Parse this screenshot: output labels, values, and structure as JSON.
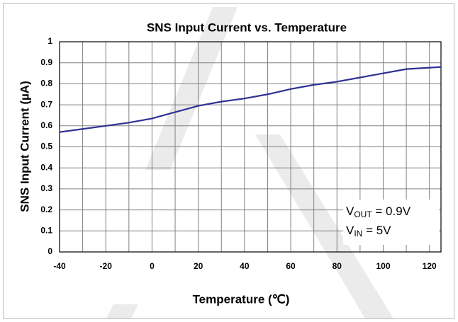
{
  "chart_data": {
    "type": "line",
    "title": "SNS Input Current vs. Temperature",
    "x_label": "Temperature (℃)",
    "y_label": "SNS Input Current (µA)",
    "x": [
      -40,
      -30,
      -20,
      -10,
      0,
      10,
      20,
      30,
      40,
      50,
      60,
      70,
      80,
      90,
      100,
      110,
      125
    ],
    "series": [
      {
        "color": "#2e3192",
        "values": [
          0.57,
          0.585,
          0.6,
          0.615,
          0.635,
          0.665,
          0.695,
          0.715,
          0.73,
          0.75,
          0.775,
          0.795,
          0.81,
          0.83,
          0.85,
          0.87,
          0.88
        ]
      }
    ],
    "xlim": [
      -40,
      125
    ],
    "xticks": [
      -40,
      -20,
      0,
      20,
      40,
      60,
      80,
      100,
      120
    ],
    "xminor_ticks": [
      -30,
      -10,
      10,
      30,
      50,
      70,
      90,
      110
    ],
    "ylim": [
      0,
      1
    ],
    "yticks": [
      0,
      0.1,
      0.2,
      0.3,
      0.4,
      0.5,
      0.6,
      0.7,
      0.8,
      0.9,
      1
    ],
    "grid": true,
    "annotations": [
      {
        "main": "V",
        "sub": "OUT",
        "rest": " = 0.9V"
      },
      {
        "main": "V",
        "sub": "IN",
        "rest": "  = 5V"
      }
    ]
  }
}
